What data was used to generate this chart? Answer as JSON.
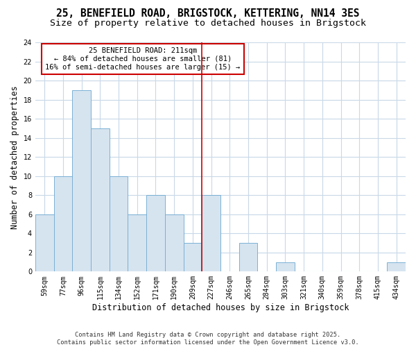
{
  "title_line1": "25, BENEFIELD ROAD, BRIGSTOCK, KETTERING, NN14 3ES",
  "title_line2": "Size of property relative to detached houses in Brigstock",
  "xlabel": "Distribution of detached houses by size in Brigstock",
  "ylabel": "Number of detached properties",
  "categories": [
    "59sqm",
    "77sqm",
    "96sqm",
    "115sqm",
    "134sqm",
    "152sqm",
    "171sqm",
    "190sqm",
    "209sqm",
    "227sqm",
    "246sqm",
    "265sqm",
    "284sqm",
    "303sqm",
    "321sqm",
    "340sqm",
    "359sqm",
    "378sqm",
    "415sqm",
    "434sqm"
  ],
  "values": [
    6,
    10,
    19,
    15,
    10,
    6,
    8,
    6,
    3,
    8,
    0,
    3,
    0,
    1,
    0,
    0,
    0,
    0,
    0,
    1
  ],
  "bar_color": "#d6e4f0",
  "bar_edge_color": "#7ab0d4",
  "vline_x": 8.5,
  "annotation_text": "25 BENEFIELD ROAD: 211sqm\n← 84% of detached houses are smaller (81)\n16% of semi-detached houses are larger (15) →",
  "annotation_box_color": "#ffffff",
  "annotation_box_edge": "#cc0000",
  "vline_color": "#cc0000",
  "ylim": [
    0,
    24
  ],
  "yticks": [
    0,
    2,
    4,
    6,
    8,
    10,
    12,
    14,
    16,
    18,
    20,
    22,
    24
  ],
  "background_color": "#ffffff",
  "plot_bg_color": "#ffffff",
  "grid_color": "#c8d8e8",
  "footer_text": "Contains HM Land Registry data © Crown copyright and database right 2025.\nContains public sector information licensed under the Open Government Licence v3.0.",
  "title_fontsize": 10.5,
  "subtitle_fontsize": 9.5,
  "tick_fontsize": 7,
  "label_fontsize": 8.5,
  "annotation_fontsize": 7.5
}
